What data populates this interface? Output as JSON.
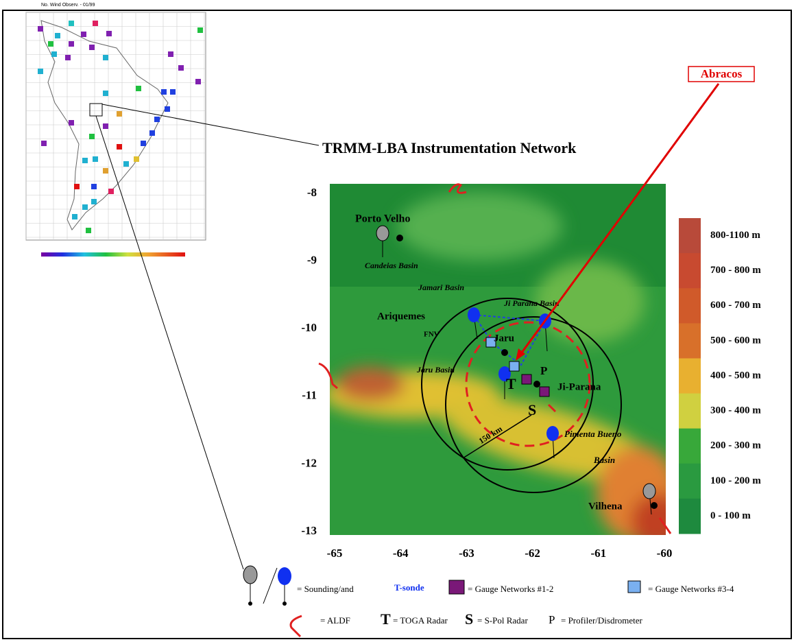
{
  "inset": {
    "caption": "No. Wind Observ. - 01/99"
  },
  "callout": "Abracos",
  "map": {
    "title": "TRMM-LBA Instrumentation Network",
    "yticks": [
      -8,
      -9,
      -10,
      -11,
      -12,
      -13
    ],
    "xticks": [
      -65,
      -64,
      -63,
      -62,
      -61,
      -60
    ],
    "places": [
      "Porto Velho",
      "Candeias Basin",
      "Jamari Basin",
      "Ji Parana Basin",
      "Ariquemes",
      "FNV",
      "Jaru",
      "Jaru Basin",
      "T",
      "P",
      "Ji-Parana",
      "S",
      "150 km",
      "Pimenta Bueno",
      "Basin",
      "Vilhena"
    ]
  },
  "elevation_legend": [
    "800-1100 m",
    "700 - 800 m",
    "600 - 700 m",
    "500 - 600 m",
    "400 - 500 m",
    "300 - 400 m",
    "200 - 300 m",
    "100 - 200 m",
    "0 - 100 m"
  ],
  "legend": {
    "sounding": "= Sounding/and",
    "tsonde": "T-sonde",
    "gauge12": "= Gauge Networks #1-2",
    "gauge34": "= Gauge Networks #3-4",
    "aldf": "= ALDF",
    "t": "T",
    "toga": "= TOGA Radar",
    "s": "S",
    "spol": "= S-Pol Radar",
    "p": "P",
    "profiler": "= Profiler/Disdrometer"
  }
}
